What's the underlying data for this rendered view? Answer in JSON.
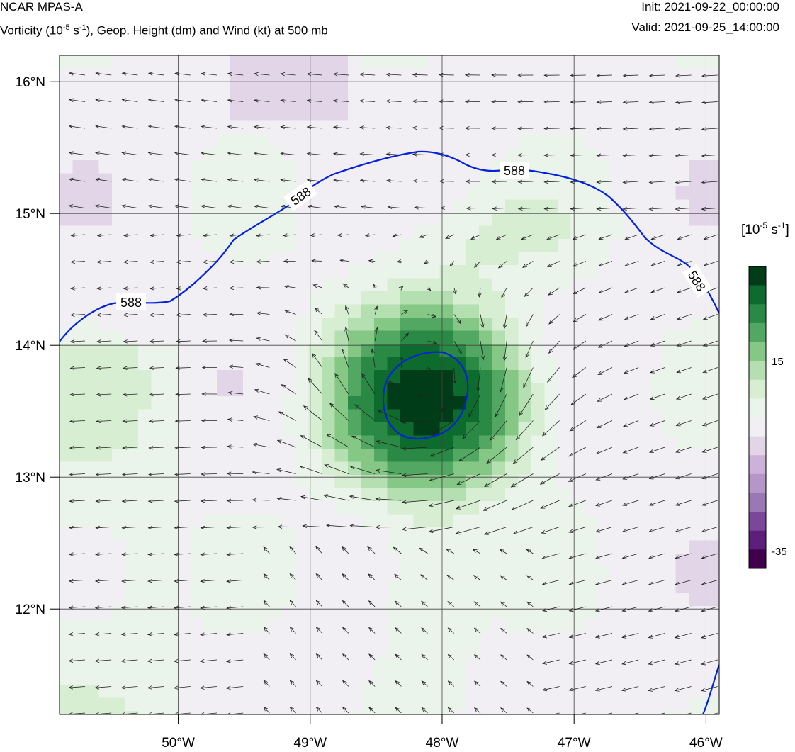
{
  "header": {
    "model": "NCAR MPAS-A",
    "field_main": "Vorticity (10",
    "field_exp": "-5",
    "field_unit": " s",
    "field_unit_exp": "-1",
    "field_rest": "), Geop. Height (dm) and Wind (kt) at 500 mb",
    "init": "Init: 2021-09-22_00:00:00",
    "valid": "Valid: 2021-09-25_14:00:00"
  },
  "map": {
    "lon_ticks": [
      "50°W",
      "49°W",
      "48°W",
      "47°W",
      "46°W"
    ],
    "lat_ticks": [
      "16°N",
      "15°N",
      "14°N",
      "13°N",
      "12°N"
    ],
    "lon_range": [
      -50.9,
      -45.9
    ],
    "lat_range": [
      11.2,
      16.2
    ],
    "contour_value": "588",
    "contour_color": "#0022dd"
  },
  "colorbar": {
    "title_main": "[10",
    "title_exp": "-5",
    "title_rest": " s",
    "title_exp2": "-1",
    "title_close": "]",
    "label_high": "15",
    "label_low": "-35",
    "colors": [
      "#003c17",
      "#0d6b2e",
      "#2a8a45",
      "#52a862",
      "#85c785",
      "#b4dfb0",
      "#d7eed3",
      "#ebf4ea",
      "#f1eef4",
      "#e3d5e8",
      "#ccb2d8",
      "#b596c8",
      "#9a78b6",
      "#7a479b",
      "#5d1e7c",
      "#40004b"
    ]
  }
}
